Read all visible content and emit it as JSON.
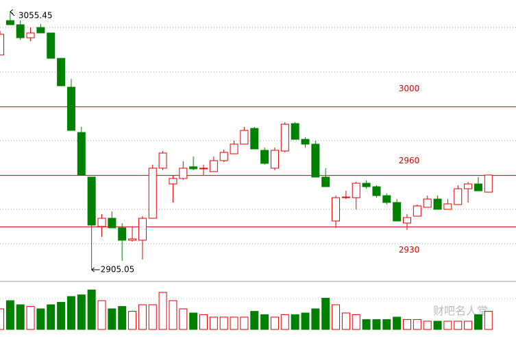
{
  "chart_data": {
    "type": "candlestick",
    "open": [
      3030.25,
      3050.25,
      3047.85,
      3040.25,
      3046.25,
      3043.05,
      3028.25,
      3011.45,
      2985.05,
      2959.05,
      2930.25,
      2935.05,
      2929.45,
      2922.25,
      2922.25,
      2935.05,
      2964.25,
      2955.05,
      2958.25,
      2965.05,
      2963.85,
      2962.25,
      2968.65,
      2972.65,
      2978.25,
      2987.45,
      2974.65,
      2964.25,
      2974.25,
      2990.25,
      2981.05,
      2978.25,
      2959.05,
      2933.45,
      2947.05,
      2947.05,
      2955.45,
      2953.45,
      2948.25,
      2944.25,
      2932.25,
      2936.25,
      2941.45,
      2946.25,
      2940.25,
      2943.05,
      2952.25,
      2955.05,
      2950.25
    ],
    "high": [
      3044.25,
      3055.45,
      3050.25,
      3046.25,
      3048.25,
      3043.05,
      3028.25,
      3016.25,
      2988.25,
      2959.05,
      2937.45,
      2939.05,
      2932.25,
      2930.25,
      2936.25,
      2966.25,
      2974.25,
      2960.25,
      2968.25,
      2971.05,
      2966.25,
      2971.05,
      2975.05,
      2980.25,
      2988.25,
      2988.25,
      2976.25,
      2976.25,
      2991.05,
      2991.05,
      2982.25,
      2980.25,
      2964.25,
      2948.25,
      2951.05,
      2956.25,
      2957.05,
      2954.25,
      2949.45,
      2946.25,
      2937.45,
      2943.05,
      2948.25,
      2948.25,
      2946.25,
      2954.25,
      2956.25,
      2959.05,
      2960.25
    ],
    "low": [
      3030.25,
      3047.85,
      3039.05,
      3038.25,
      3043.05,
      3028.25,
      3012.25,
      2986.25,
      2960.25,
      2905.05,
      2924.25,
      2929.45,
      2910.25,
      2921.45,
      2911.05,
      2935.05,
      2963.05,
      2944.25,
      2957.45,
      2963.05,
      2960.25,
      2962.25,
      2967.85,
      2972.65,
      2978.25,
      2975.45,
      2966.25,
      2963.05,
      2973.45,
      2981.05,
      2976.25,
      2959.05,
      2953.45,
      2929.45,
      2946.25,
      2940.25,
      2952.25,
      2947.05,
      2943.05,
      2933.45,
      2928.25,
      2936.25,
      2941.45,
      2940.25,
      2940.25,
      2943.05,
      2944.25,
      2951.05,
      2950.25
    ],
    "close": [
      3042.25,
      3047.85,
      3040.25,
      3043.05,
      3043.05,
      3028.25,
      3012.25,
      2986.25,
      2960.25,
      2931.05,
      2935.05,
      2929.45,
      2922.25,
      2923.05,
      2935.05,
      2964.25,
      2973.05,
      2958.25,
      2964.25,
      2963.85,
      2964.25,
      2968.65,
      2973.45,
      2978.25,
      2986.25,
      2975.45,
      2967.05,
      2974.65,
      2989.85,
      2981.05,
      2978.25,
      2959.05,
      2953.45,
      2947.05,
      2947.45,
      2955.45,
      2953.45,
      2948.25,
      2944.25,
      2933.45,
      2935.45,
      2942.25,
      2946.25,
      2940.25,
      2943.45,
      2952.25,
      2955.05,
      2951.05,
      2960.25
    ],
    "volume": [
      25,
      35,
      30,
      28,
      25,
      30,
      33,
      40,
      42,
      48,
      35,
      25,
      28,
      22,
      30,
      30,
      45,
      35,
      25,
      20,
      18,
      15,
      15,
      15,
      15,
      22,
      18,
      15,
      18,
      18,
      20,
      25,
      38,
      30,
      20,
      18,
      12,
      12,
      12,
      15,
      12,
      12,
      10,
      10,
      10,
      10,
      10,
      18,
      22
    ],
    "ylim": [
      2898.25,
      3062.25
    ],
    "vlim": [
      0,
      50
    ],
    "levels": [
      3000,
      2960,
      2930
    ],
    "annotations": [
      3055.45,
      2905.05
    ],
    "up_color": "#e00000",
    "down_color": "#008000",
    "watermark": "财吧名人堂"
  }
}
